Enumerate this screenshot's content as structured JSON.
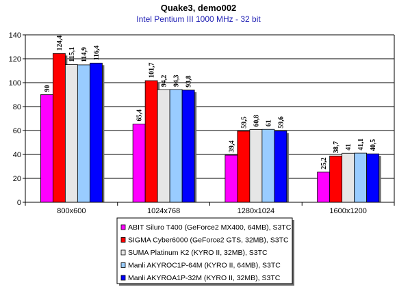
{
  "chart_data": {
    "type": "bar",
    "title": "Quake3, demo002",
    "subtitle": "Intel Pentium III 1000 MHz - 32 bit",
    "categories": [
      "800x600",
      "1024x768",
      "1280x1024",
      "1600x1200"
    ],
    "ylim": [
      0,
      140
    ],
    "yticks": [
      0,
      20,
      40,
      60,
      80,
      100,
      120,
      140
    ],
    "ytick_labels": [
      "0",
      "20",
      "40",
      "60",
      "80",
      "100",
      "120",
      "140"
    ],
    "grid": true,
    "legend_position": "bottom",
    "series": [
      {
        "name": "ABIT Siluro T400 (GeForce2 MX400, 64MB), S3TC",
        "color": "#ff00ff",
        "values": [
          90,
          65.4,
          39.4,
          25.2
        ],
        "labels": [
          "90",
          "65,4",
          "39,4",
          "25,2"
        ]
      },
      {
        "name": "SIGMA Cyber6000 (GeForce2 GTS, 32MB), S3TC",
        "color": "#ff0000",
        "values": [
          124.4,
          101.7,
          59.5,
          38.7
        ],
        "labels": [
          "124,4",
          "101,7",
          "59,5",
          "38,7"
        ]
      },
      {
        "name": "SUMA Platinum K2 (KYRO II, 32MB), S3TC",
        "color": "#e6e6e6",
        "values": [
          115.1,
          94.2,
          60.8,
          41
        ],
        "labels": [
          "115,1",
          "94,2",
          "60,8",
          "41"
        ]
      },
      {
        "name": "Manli AKYROC1P-64M (KYRO II, 64MB), S3TC",
        "color": "#99ccff",
        "values": [
          114.9,
          94.3,
          61,
          41.1
        ],
        "labels": [
          "114,9",
          "94,3",
          "61",
          "41,1"
        ]
      },
      {
        "name": "Manli AKYROA1P-32M (KYRO II, 32MB), S3TC",
        "color": "#0000ff",
        "values": [
          116.4,
          93.8,
          59.6,
          40.5
        ],
        "labels": [
          "116,4",
          "93,8",
          "59,6",
          "40,5"
        ]
      }
    ]
  }
}
